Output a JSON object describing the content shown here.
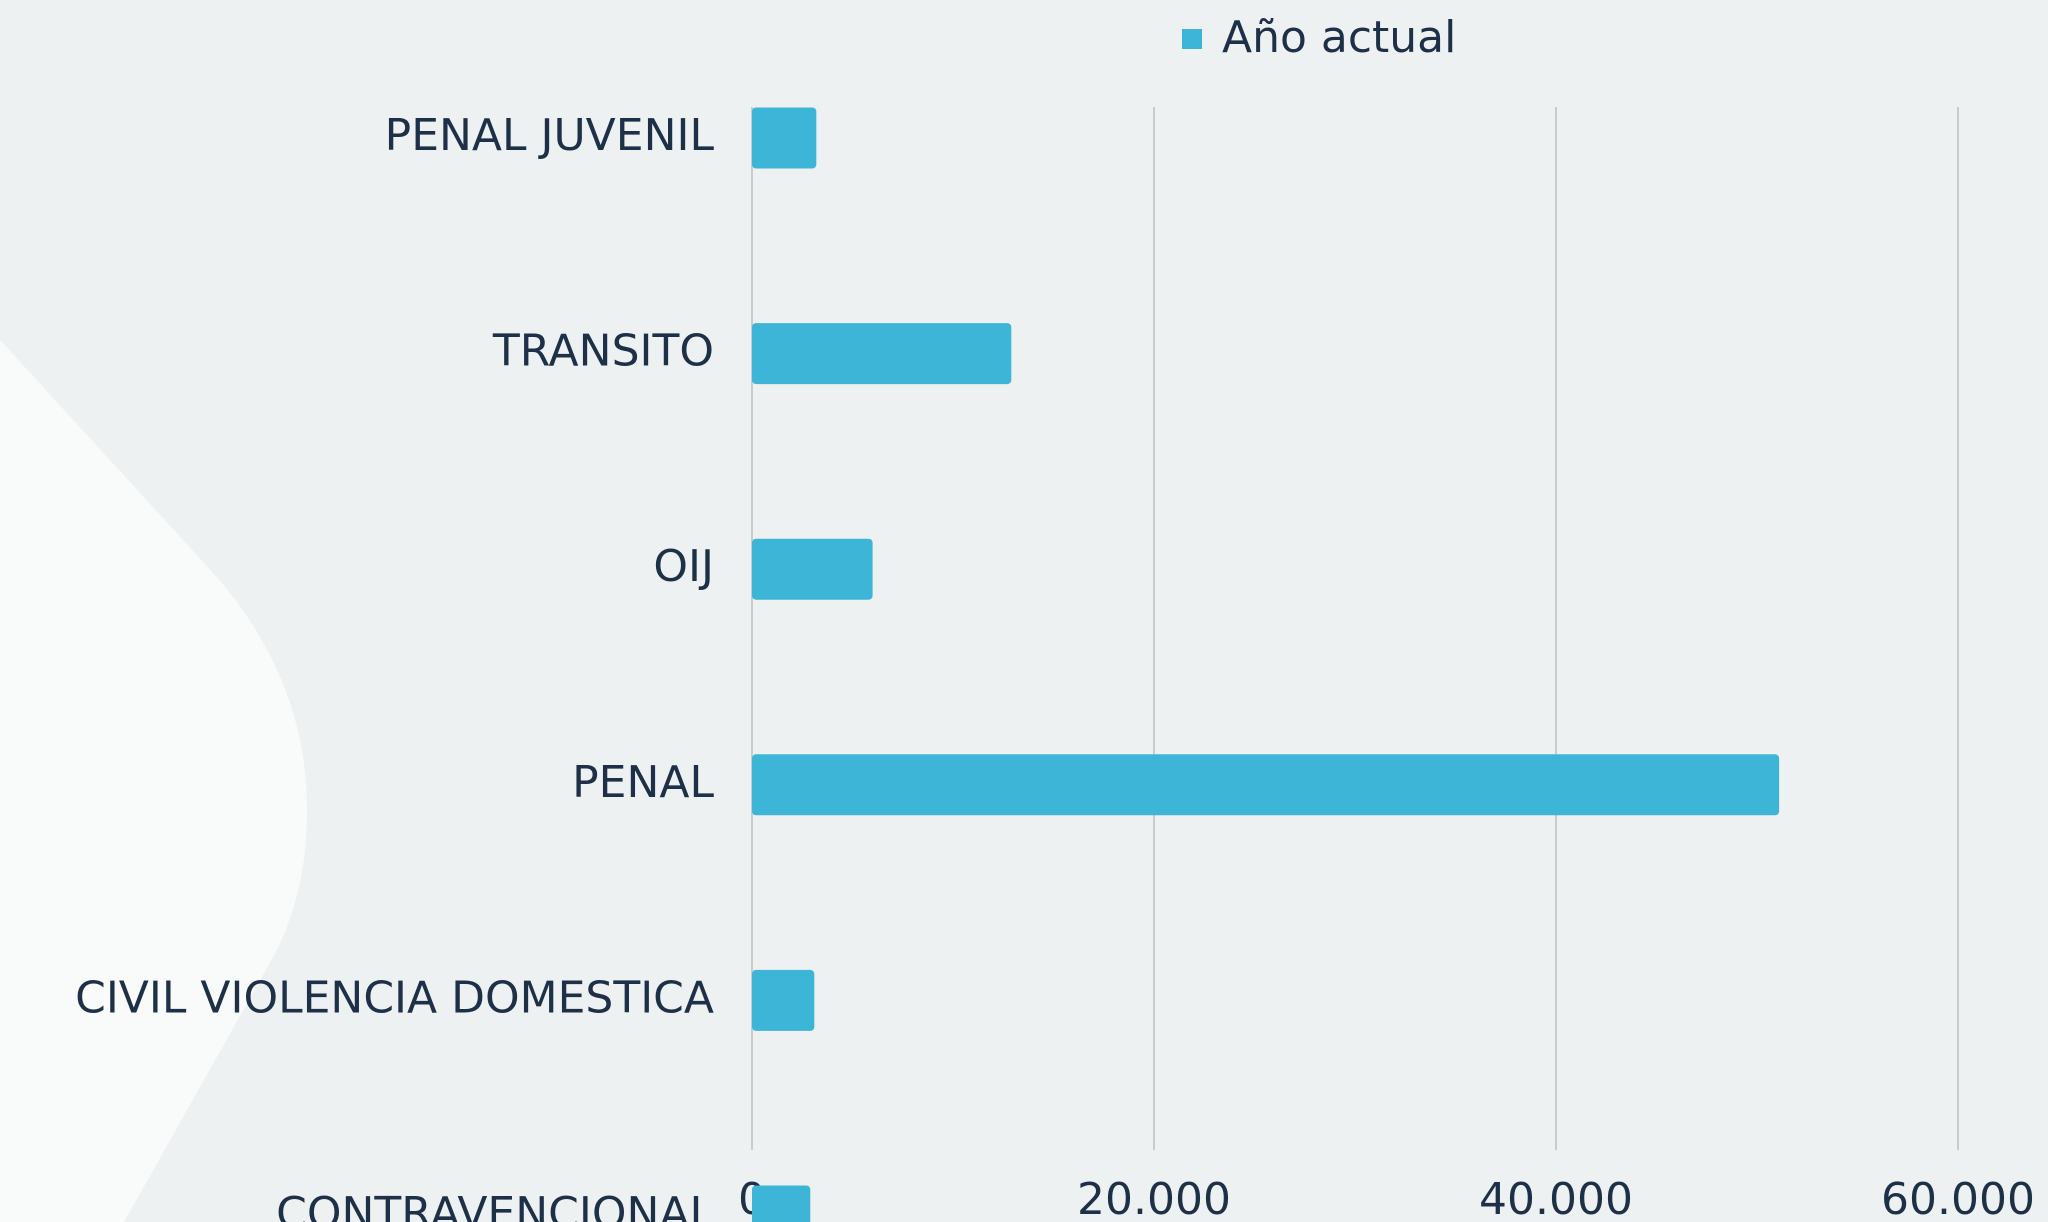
{
  "chart_data": {
    "type": "bar",
    "orientation": "horizontal",
    "categories": [
      "PENAL JUVENIL",
      "TRANSITO",
      "OIJ",
      "PENAL",
      "CIVIL VIOLENCIA DOMESTICA",
      "CONTRAVENCIONAL"
    ],
    "series": [
      {
        "name": "Año actual",
        "color": "#3db5d6",
        "values": [
          3200,
          12900,
          6000,
          51100,
          3100,
          2900
        ]
      }
    ],
    "xlim": [
      0,
      60000
    ],
    "xticks": [
      0,
      {
        "value": 20000,
        "label": "20.000"
      },
      {
        "value": 40000,
        "label": "40.000"
      },
      {
        "value": 60000,
        "label": "60.000"
      }
    ],
    "grid": true,
    "legend": "top"
  }
}
